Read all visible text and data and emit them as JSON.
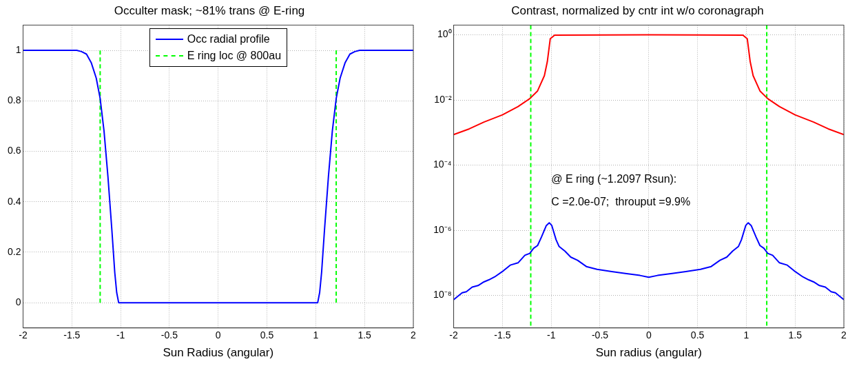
{
  "chart_data": [
    {
      "type": "line",
      "title": "Occulter mask; ~81% trans @ E-ring",
      "xlabel": "Sun Radius (angular)",
      "xlim": [
        -2,
        2
      ],
      "xticks": [
        -2,
        -1.5,
        -1,
        -0.5,
        0,
        0.5,
        1,
        1.5,
        2
      ],
      "ylim": [
        -0.1,
        1.1
      ],
      "yticks": [
        0,
        0.2,
        0.4,
        0.6,
        0.8,
        1
      ],
      "grid": true,
      "legend": "top",
      "marker": "none",
      "series": [
        {
          "name": "Occ radial profile",
          "color": "#0000ff",
          "line_style": "solid",
          "x": [
            -2,
            -1.45,
            -1.4,
            -1.35,
            -1.3,
            -1.25,
            -1.21,
            -1.17,
            -1.13,
            -1.09,
            -1.06,
            -1.04,
            -1.02,
            1.02,
            1.04,
            1.06,
            1.09,
            1.13,
            1.17,
            1.21,
            1.25,
            1.3,
            1.35,
            1.4,
            1.45,
            2
          ],
          "values": [
            1,
            1,
            0.995,
            0.985,
            0.95,
            0.89,
            0.81,
            0.68,
            0.5,
            0.29,
            0.12,
            0.04,
            0,
            0,
            0.04,
            0.12,
            0.29,
            0.5,
            0.68,
            0.81,
            0.89,
            0.95,
            0.985,
            0.995,
            1,
            1
          ]
        },
        {
          "name": "E ring loc @ 800au",
          "color": "#00ff00",
          "line_style": "dashed",
          "x": [
            -1.2097,
            -1.2097,
            0,
            1.2097,
            1.2097
          ],
          "values": [
            0,
            1,
            null,
            1,
            0
          ]
        }
      ]
    },
    {
      "type": "line",
      "title": "Contrast, normalized by cntr int w/o coronagraph",
      "xlabel": "Sun radius (angular)",
      "xlim": [
        -2,
        2
      ],
      "xticks": [
        -2,
        -1.5,
        -1,
        -0.5,
        0,
        0.5,
        1,
        1.5,
        2
      ],
      "ylim": [
        1e-09,
        2
      ],
      "log": "y",
      "yticks": [
        {
          "value": 1e-08,
          "label": "10⁻⁸"
        },
        {
          "value": 1e-06,
          "label": "10⁻⁶"
        },
        {
          "value": 0.0001,
          "label": "10⁻⁴"
        },
        {
          "value": 0.01,
          "label": "10⁻²"
        },
        {
          "value": 1,
          "label": "10⁰"
        }
      ],
      "grid": true,
      "marker": "none",
      "annotations": [
        "@ E ring (~1.2097 Rsun):",
        "C =2.0e-07;  throuput =9.9%"
      ],
      "ref_lines": [
        {
          "axis": "x",
          "value": -1.2097,
          "label": null,
          "color": "#00ff00",
          "line_style": "dashed"
        },
        {
          "axis": "x",
          "value": 1.2097,
          "label": null,
          "color": "#00ff00",
          "line_style": "dashed"
        }
      ],
      "series": [
        {
          "color": "#ff0000",
          "line_style": "solid",
          "x": [
            -2,
            -1.84,
            -1.69,
            -1.5,
            -1.34,
            -1.22,
            -1.14,
            -1.07,
            -1.04,
            -1.01,
            -0.965,
            0,
            0.965,
            1.01,
            1.04,
            1.07,
            1.14,
            1.22,
            1.34,
            1.5,
            1.69,
            1.84,
            2
          ],
          "values": [
            0.00087,
            0.0013,
            0.0021,
            0.0035,
            0.0063,
            0.011,
            0.019,
            0.056,
            0.15,
            0.76,
            0.98,
            1,
            0.98,
            0.76,
            0.15,
            0.056,
            0.019,
            0.011,
            0.0063,
            0.0035,
            0.0021,
            0.0013,
            0.00087
          ]
        },
        {
          "color": "#0000ff",
          "line_style": "solid",
          "x": [
            -2,
            -1.913,
            -1.87,
            -1.81,
            -1.75,
            -1.69,
            -1.64,
            -1.58,
            -1.49,
            -1.42,
            -1.34,
            -1.27,
            -1.22,
            -1.18,
            -1.14,
            -1.1,
            -1.05,
            -1.02,
            -0.994,
            -0.95,
            -0.92,
            -0.86,
            -0.8,
            -0.73,
            -0.64,
            -0.53,
            -0.38,
            -0.24,
            -0.09,
            0,
            0.09,
            0.24,
            0.38,
            0.53,
            0.64,
            0.73,
            0.8,
            0.86,
            0.92,
            0.95,
            0.994,
            1.02,
            1.05,
            1.1,
            1.14,
            1.18,
            1.22,
            1.27,
            1.34,
            1.42,
            1.49,
            1.58,
            1.64,
            1.69,
            1.75,
            1.81,
            1.87,
            1.913,
            2
          ],
          "values": [
            7.4e-09,
            1.2e-08,
            1.3e-08,
            1.8e-08,
            2e-08,
            2.6e-08,
            3e-08,
            3.7e-08,
            5.7e-08,
            8.5e-08,
            1e-07,
            1.7e-07,
            1.95e-07,
            2.8e-07,
            3.4e-07,
            6.2e-07,
            1.4e-06,
            1.7e-06,
            1.4e-06,
            5.1e-07,
            3.2e-07,
            2.3e-07,
            1.5e-07,
            1.2e-07,
            7.7e-08,
            6.3e-08,
            5.4e-08,
            4.7e-08,
            4.1e-08,
            3.6e-08,
            4.1e-08,
            4.7e-08,
            5.4e-08,
            6.3e-08,
            7.7e-08,
            1.2e-07,
            1.5e-07,
            2.3e-07,
            3.2e-07,
            5.1e-07,
            1.4e-06,
            1.7e-06,
            1.4e-06,
            6.2e-07,
            3.4e-07,
            2.8e-07,
            1.95e-07,
            1.7e-07,
            1e-07,
            8.5e-08,
            5.7e-08,
            3.7e-08,
            3e-08,
            2.6e-08,
            2e-08,
            1.8e-08,
            1.3e-08,
            1.2e-08,
            7.4e-09
          ]
        }
      ]
    }
  ]
}
